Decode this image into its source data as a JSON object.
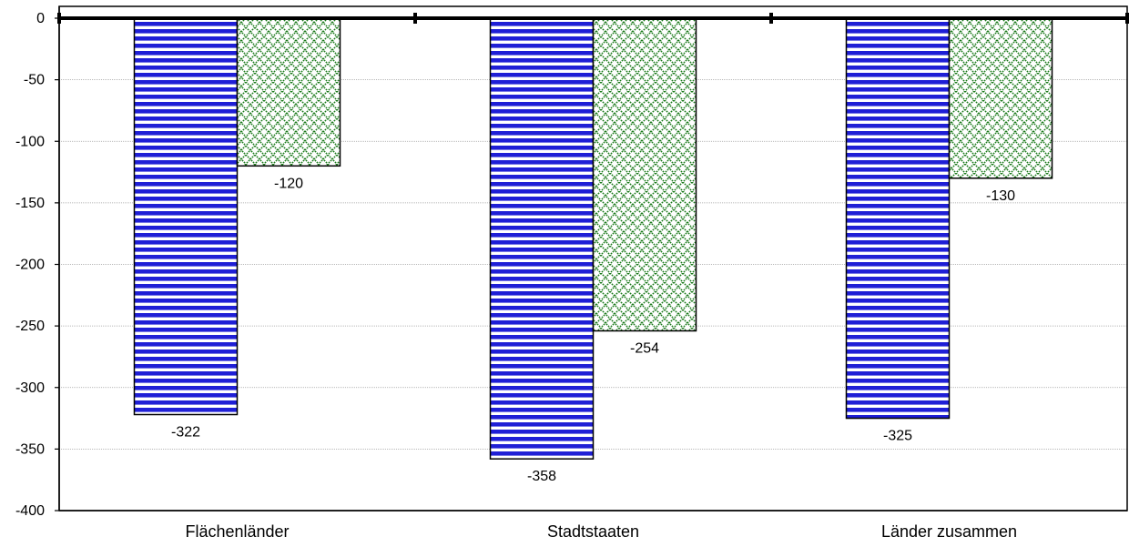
{
  "chart_data": {
    "type": "bar",
    "title": "",
    "xlabel": "",
    "ylabel": "",
    "categories": [
      "Flächenländer",
      "Stadtstaaten",
      "Länder zusammen"
    ],
    "series": [
      {
        "values": [
          -322,
          -358,
          -325
        ],
        "color": "#1f1fd6",
        "pattern": "horizontal-stripes"
      },
      {
        "values": [
          -120,
          -254,
          -130
        ],
        "color": "#1a7a1a",
        "pattern": "diagonal-crosshatch"
      }
    ],
    "ylim": [
      -400,
      0
    ],
    "yticks": [
      0,
      -50,
      -100,
      -150,
      -200,
      -250,
      -300,
      -350,
      -400
    ],
    "grid": "horizontal",
    "legend": "none",
    "data_labels": [
      [
        "-322",
        "-358",
        "-325"
      ],
      [
        "-120",
        "-254",
        "-130"
      ]
    ]
  }
}
